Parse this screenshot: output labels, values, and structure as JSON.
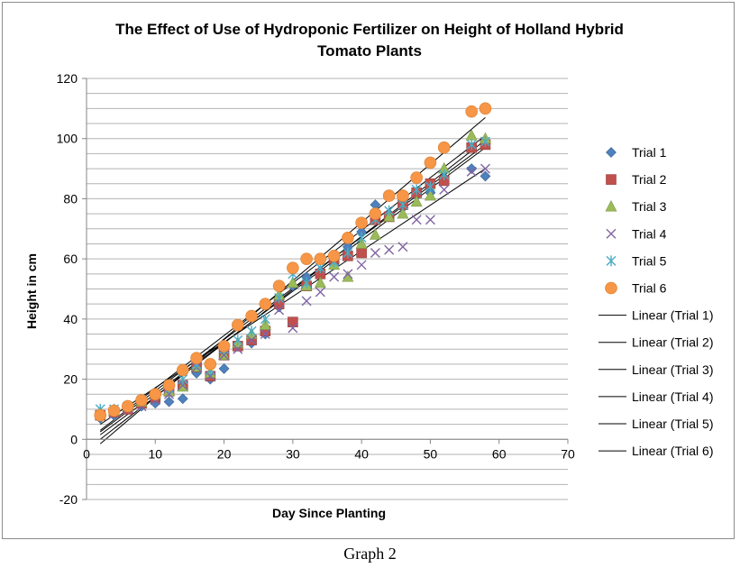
{
  "caption": "Graph 2",
  "colors": {
    "trial1": "#4f81bd",
    "trial2": "#c0504d",
    "trial3": "#9bbb59",
    "trial4": "#8064a2",
    "trial5": "#4bacc6",
    "trial6": "#f79646",
    "trendline": "#000000",
    "grid": "#b3b3b3"
  },
  "chart_data": {
    "type": "scatter",
    "title": [
      "The Effect of Use of Hydroponic Fertilizer on Height of Holland Hybrid",
      "Tomato Plants"
    ],
    "xlabel": "Day Since Planting",
    "ylabel": "Height in cm",
    "xlim": [
      0,
      70
    ],
    "ylim": [
      -20,
      120
    ],
    "xticks": [
      0,
      10,
      20,
      30,
      40,
      50,
      60,
      70
    ],
    "yticks": [
      -20,
      0,
      20,
      40,
      60,
      80,
      100,
      120
    ],
    "grid": "horizontal",
    "legend_position": "right",
    "series": [
      {
        "name": "Trial 1",
        "marker": "diamond",
        "color": "#4f81bd",
        "x": [
          2,
          4,
          6,
          8,
          10,
          12,
          14,
          16,
          18,
          20,
          22,
          24,
          26,
          28,
          30,
          32,
          34,
          36,
          38,
          40,
          42,
          44,
          46,
          48,
          50,
          52,
          56,
          58
        ],
        "y": [
          7,
          8,
          10,
          11,
          12,
          12.5,
          13.5,
          22,
          20,
          23.5,
          31,
          32,
          35,
          44,
          51,
          54,
          56,
          58,
          64,
          69,
          78,
          75,
          77,
          81,
          82,
          87,
          90,
          87.5
        ]
      },
      {
        "name": "Trial 2",
        "marker": "square",
        "color": "#c0504d",
        "x": [
          2,
          4,
          6,
          8,
          10,
          12,
          14,
          16,
          18,
          20,
          22,
          24,
          26,
          28,
          30,
          32,
          34,
          36,
          38,
          40,
          42,
          44,
          46,
          48,
          50,
          52,
          56,
          58
        ],
        "y": [
          8,
          9,
          10,
          12,
          14,
          16,
          18,
          24,
          21,
          28,
          31,
          33,
          36,
          45,
          39,
          51,
          55,
          60,
          61,
          62,
          73,
          74,
          78,
          82,
          85,
          86,
          97,
          98
        ]
      },
      {
        "name": "Trial 3",
        "marker": "triangle",
        "color": "#9bbb59",
        "x": [
          2,
          4,
          6,
          8,
          10,
          12,
          14,
          16,
          18,
          20,
          22,
          24,
          26,
          28,
          30,
          32,
          34,
          36,
          38,
          40,
          42,
          44,
          46,
          48,
          50,
          52,
          56,
          58
        ],
        "y": [
          9,
          9.5,
          11,
          12.5,
          15,
          16,
          17.5,
          24,
          22,
          28,
          32,
          35,
          38,
          48,
          52,
          51,
          52,
          58,
          54,
          65,
          68,
          74,
          75,
          79,
          81,
          90,
          101,
          100
        ]
      },
      {
        "name": "Trial 4",
        "marker": "x",
        "color": "#8064a2",
        "x": [
          2,
          4,
          6,
          8,
          10,
          12,
          14,
          16,
          18,
          20,
          22,
          24,
          26,
          28,
          30,
          32,
          34,
          36,
          38,
          40,
          42,
          44,
          46,
          48,
          50,
          52,
          56,
          58
        ],
        "y": [
          8,
          8.5,
          10,
          11,
          13,
          15,
          18,
          24,
          21,
          28,
          30,
          33,
          35,
          43,
          37,
          46,
          49,
          54,
          55,
          58,
          62,
          63,
          64,
          73,
          73,
          83,
          89,
          90
        ]
      },
      {
        "name": "Trial 5",
        "marker": "star",
        "color": "#4bacc6",
        "x": [
          2,
          4,
          6,
          8,
          10,
          12,
          14,
          16,
          18,
          20,
          22,
          24,
          26,
          28,
          30,
          32,
          34,
          36,
          38,
          40,
          42,
          44,
          46,
          48,
          50,
          52,
          56,
          58
        ],
        "y": [
          10,
          10,
          11,
          13,
          15,
          17,
          20,
          25,
          23,
          30,
          33,
          36,
          40,
          47,
          55,
          52,
          57,
          59,
          62,
          67,
          73,
          76,
          78,
          83,
          84,
          88,
          98,
          99
        ]
      },
      {
        "name": "Trial 6",
        "marker": "circle",
        "color": "#f79646",
        "x": [
          2,
          4,
          6,
          8,
          10,
          12,
          14,
          16,
          18,
          20,
          22,
          24,
          26,
          28,
          30,
          32,
          34,
          36,
          38,
          40,
          42,
          44,
          46,
          48,
          50,
          52,
          56,
          58
        ],
        "y": [
          8,
          9.5,
          11,
          13,
          15,
          18,
          23,
          27,
          25,
          31,
          38,
          41,
          45,
          51,
          57,
          60,
          60,
          61,
          67,
          72,
          75,
          81,
          81,
          87,
          92,
          97,
          109,
          110
        ]
      }
    ],
    "trendlines": [
      {
        "name": "Linear (Trial 1)",
        "x": [
          2,
          58
        ],
        "y": [
          1.5,
          97
        ]
      },
      {
        "name": "Linear (Trial 2)",
        "x": [
          2,
          58
        ],
        "y": [
          2.5,
          98
        ]
      },
      {
        "name": "Linear (Trial 3)",
        "x": [
          2,
          58
        ],
        "y": [
          0,
          99.5
        ]
      },
      {
        "name": "Linear (Trial 4)",
        "x": [
          2,
          58
        ],
        "y": [
          5,
          90
        ]
      },
      {
        "name": "Linear (Trial 5)",
        "x": [
          2,
          58
        ],
        "y": [
          3,
          101
        ]
      },
      {
        "name": "Linear (Trial 6)",
        "x": [
          2,
          58
        ],
        "y": [
          -1.5,
          107
        ]
      }
    ]
  }
}
